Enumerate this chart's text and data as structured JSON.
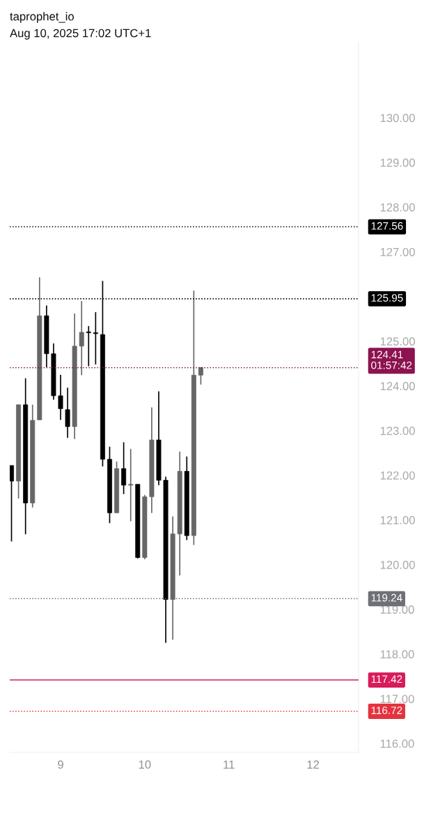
{
  "chart_data": {
    "type": "candlestick",
    "title": "taprophet_io",
    "subtitle": "Aug 10, 2025 17:02 UTC+1",
    "x": [
      "2025-08-08T10:00",
      "2025-08-08T12:00",
      "2025-08-08T14:00",
      "2025-08-08T16:00",
      "2025-08-08T18:00",
      "2025-08-08T20:00",
      "2025-08-08T22:00",
      "2025-08-09T00:00",
      "2025-08-09T02:00",
      "2025-08-09T04:00",
      "2025-08-09T06:00",
      "2025-08-09T08:00",
      "2025-08-09T10:00",
      "2025-08-09T12:00",
      "2025-08-09T14:00",
      "2025-08-09T16:00",
      "2025-08-09T18:00",
      "2025-08-09T20:00",
      "2025-08-09T22:00",
      "2025-08-10T00:00",
      "2025-08-10T02:00",
      "2025-08-10T04:00",
      "2025-08-10T06:00",
      "2025-08-10T08:00",
      "2025-08-10T10:00",
      "2025-08-10T12:00",
      "2025-08-10T14:00",
      "2025-08-10T16:00"
    ],
    "ohlc": [
      [
        122.22,
        122.22,
        120.52,
        121.87
      ],
      [
        121.87,
        123.58,
        121.48,
        123.58
      ],
      [
        123.58,
        124.17,
        120.68,
        121.38
      ],
      [
        121.38,
        123.58,
        121.28,
        123.23
      ],
      [
        123.24,
        126.43,
        123.24,
        125.57
      ],
      [
        125.57,
        125.8,
        124.42,
        124.72
      ],
      [
        124.72,
        124.95,
        123.69,
        123.78
      ],
      [
        123.78,
        124.25,
        123.24,
        123.49
      ],
      [
        123.47,
        123.96,
        122.84,
        123.09
      ],
      [
        123.09,
        125.62,
        122.81,
        124.89
      ],
      [
        124.89,
        125.9,
        124.24,
        125.2
      ],
      [
        125.2,
        125.34,
        124.44,
        125.19
      ],
      [
        125.19,
        125.65,
        124.48,
        125.17
      ],
      [
        125.15,
        126.35,
        122.2,
        122.36
      ],
      [
        122.36,
        122.64,
        120.93,
        121.16
      ],
      [
        121.16,
        122.31,
        121.16,
        122.15
      ],
      [
        122.15,
        122.74,
        121.58,
        121.78
      ],
      [
        121.78,
        122.59,
        120.97,
        121.79
      ],
      [
        121.8,
        121.8,
        120.14,
        120.16
      ],
      [
        120.16,
        121.56,
        120.12,
        121.52
      ],
      [
        121.52,
        123.52,
        121.16,
        122.79
      ],
      [
        122.79,
        123.88,
        121.78,
        121.89
      ],
      [
        121.89,
        121.97,
        118.25,
        119.22
      ],
      [
        119.22,
        121.08,
        118.32,
        120.69
      ],
      [
        120.69,
        122.53,
        119.76,
        122.09
      ],
      [
        122.09,
        122.42,
        120.55,
        120.65
      ],
      [
        120.65,
        126.13,
        120.44,
        124.24
      ],
      [
        124.24,
        124.42,
        124.03,
        124.41
      ]
    ],
    "colors": [
      "#000000",
      "#666666",
      "#000000",
      "#666666",
      "#666666",
      "#000000",
      "#000000",
      "#000000",
      "#000000",
      "#666666",
      "#666666",
      "#000000",
      "#000000",
      "#000000",
      "#000000",
      "#666666",
      "#000000",
      "#666666",
      "#000000",
      "#666666",
      "#666666",
      "#000000",
      "#000000",
      "#666666",
      "#666666",
      "#000000",
      "#666666",
      "#666666"
    ],
    "xlim": [
      "2025-08-08T09:30",
      "2025-08-12T13:00"
    ],
    "xticks": [
      {
        "value": "2025-08-09",
        "label": "9"
      },
      {
        "value": "2025-08-10",
        "label": "10"
      },
      {
        "value": "2025-08-11",
        "label": "11"
      },
      {
        "value": "2025-08-12",
        "label": "12"
      }
    ],
    "ylim": [
      115.8,
      131.7
    ],
    "yticks": [
      {
        "value": 116,
        "label": "116.00"
      },
      {
        "value": 117,
        "label": "117.00"
      },
      {
        "value": 118,
        "label": "118.00"
      },
      {
        "value": 119,
        "label": "119.00"
      },
      {
        "value": 120,
        "label": "120.00"
      },
      {
        "value": 121,
        "label": "121.00"
      },
      {
        "value": 122,
        "label": "122.00"
      },
      {
        "value": 123,
        "label": "123.00"
      },
      {
        "value": 124,
        "label": "124.00"
      },
      {
        "value": 125,
        "label": "125.00"
      },
      {
        "value": 127,
        "label": "127.00"
      },
      {
        "value": 128,
        "label": "128.00"
      },
      {
        "value": 129,
        "label": "129.00"
      },
      {
        "value": 130,
        "label": "130.00"
      }
    ],
    "ref_lines": [
      {
        "axis": "y",
        "value": 127.56,
        "label": "127.56",
        "color": "#000000",
        "line_style": "dotted"
      },
      {
        "axis": "y",
        "value": 125.95,
        "label": "125.95",
        "color": "#000000",
        "line_style": "dotted"
      },
      {
        "axis": "y",
        "value": 124.41,
        "label": "124.41\n01:57:42",
        "color": "#8c1250",
        "line_style": "dotted"
      },
      {
        "axis": "y",
        "value": 119.24,
        "label": "119.24",
        "color": "#6f7077",
        "line_style": "dotted"
      },
      {
        "axis": "y",
        "value": 117.42,
        "label": "117.42",
        "color": "#d81b5a",
        "line_style": "solid"
      },
      {
        "axis": "y",
        "value": 116.72,
        "label": "116.72",
        "color": "#e5323f",
        "line_style": "dotted"
      }
    ]
  }
}
